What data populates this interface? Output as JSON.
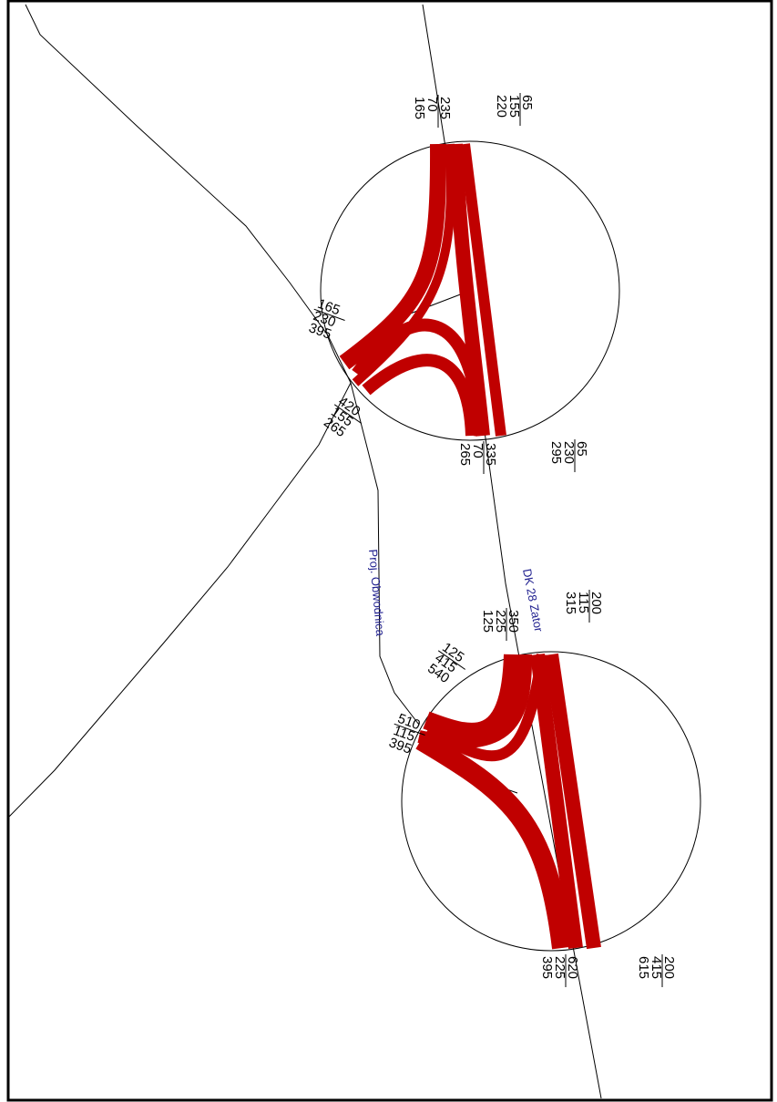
{
  "colors": {
    "background": "#ffffff",
    "frame": "#000000",
    "road": "#000000",
    "flow": "#c00000",
    "road_label": "#1f1f8f"
  },
  "road_labels": {
    "dk28": "DK 28 Zator",
    "obwodnica": "Proj. Obwodnica"
  },
  "intersections": [
    {
      "id": "north",
      "arms": [
        {
          "id": "north-top-left",
          "values": [
            "235",
            "70",
            "165"
          ]
        },
        {
          "id": "north-top-right",
          "values": [
            "65",
            "155",
            "220"
          ]
        },
        {
          "id": "north-left",
          "values": [
            "165",
            "230",
            "395"
          ]
        },
        {
          "id": "north-bottom-left",
          "values": [
            "420",
            "155",
            "265"
          ]
        },
        {
          "id": "north-bottom-mid",
          "values": [
            "335",
            "70",
            "265"
          ]
        },
        {
          "id": "north-bottom-right",
          "values": [
            "65",
            "230",
            "295"
          ]
        }
      ]
    },
    {
      "id": "south",
      "arms": [
        {
          "id": "south-top-left",
          "values": [
            "350",
            "225",
            "125"
          ]
        },
        {
          "id": "south-top-right",
          "values": [
            "200",
            "115",
            "315"
          ]
        },
        {
          "id": "south-left-upper",
          "values": [
            "125",
            "415",
            "540"
          ]
        },
        {
          "id": "south-left",
          "values": [
            "510",
            "115",
            "395"
          ]
        },
        {
          "id": "south-bottom-left",
          "values": [
            "620",
            "225",
            "395"
          ]
        },
        {
          "id": "south-bottom-right",
          "values": [
            "200",
            "415",
            "615"
          ]
        }
      ]
    }
  ]
}
